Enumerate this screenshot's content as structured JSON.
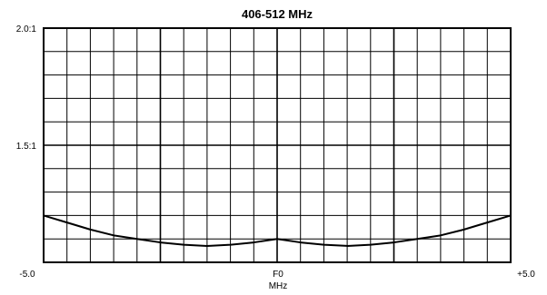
{
  "chart_data": {
    "type": "line",
    "title": "406-512 MHz",
    "xlabel": "MHz",
    "ylabel": "",
    "x_tick_labels": [
      "-5.0",
      "F0",
      "+5.0"
    ],
    "y_tick_labels": [
      "2.0:1",
      "1.5:1"
    ],
    "xlim": [
      -5.0,
      5.0
    ],
    "ylim": [
      1.0,
      2.0
    ],
    "grid": true,
    "series": [
      {
        "color": "#000000",
        "x": [
          -5.0,
          -4.5,
          -4.0,
          -3.5,
          -3.0,
          -2.5,
          -2.0,
          -1.5,
          -1.0,
          -0.5,
          0.0,
          0.5,
          1.0,
          1.5,
          2.0,
          2.5,
          3.0,
          3.5,
          4.0,
          4.5,
          5.0
        ],
        "y": [
          1.2,
          1.17,
          1.14,
          1.115,
          1.1,
          1.085,
          1.075,
          1.07,
          1.075,
          1.085,
          1.1,
          1.085,
          1.075,
          1.07,
          1.075,
          1.085,
          1.1,
          1.115,
          1.14,
          1.17,
          1.2
        ]
      }
    ]
  }
}
